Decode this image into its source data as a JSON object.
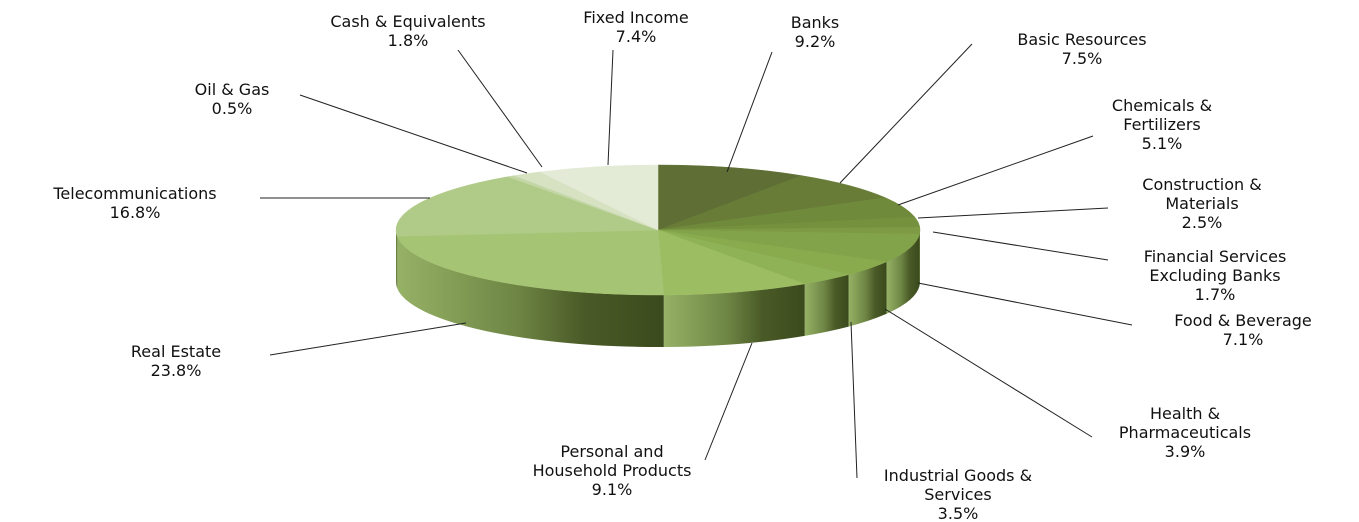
{
  "chart_data": {
    "type": "pie",
    "style": "3d",
    "slices": [
      {
        "name": "Banks",
        "lines": [
          "Banks"
        ],
        "pct_label": "9.2%",
        "value": 9.2,
        "color": "#5e6e34"
      },
      {
        "name": "Basic Resources",
        "lines": [
          "Basic Resources"
        ],
        "pct_label": "7.5%",
        "value": 7.5,
        "color": "#687c38"
      },
      {
        "name": "Chemicals & Fertilizers",
        "lines": [
          "Chemicals &",
          "Fertilizers"
        ],
        "pct_label": "5.1%",
        "value": 5.1,
        "color": "#6f8a3a"
      },
      {
        "name": "Construction & Materials",
        "lines": [
          "Construction &",
          "Materials"
        ],
        "pct_label": "2.5%",
        "value": 2.5,
        "color": "#76913e"
      },
      {
        "name": "Financial Services Excluding Banks",
        "lines": [
          "Financial Services",
          "Excluding Banks"
        ],
        "pct_label": "1.7%",
        "value": 1.7,
        "color": "#7e9a44"
      },
      {
        "name": "Food & Beverage",
        "lines": [
          "Food & Beverage"
        ],
        "pct_label": "7.1%",
        "value": 7.1,
        "color": "#82a34a"
      },
      {
        "name": "Health & Pharmaceuticals",
        "lines": [
          "Health &",
          "Pharmaceuticals"
        ],
        "pct_label": "3.9%",
        "value": 3.9,
        "color": "#89ab4e"
      },
      {
        "name": "Industrial Goods & Services",
        "lines": [
          "Industrial Goods &",
          "Services"
        ],
        "pct_label": "3.5%",
        "value": 3.5,
        "color": "#8fb256"
      },
      {
        "name": "Personal and Household Products",
        "lines": [
          "Personal and",
          "Household Products"
        ],
        "pct_label": "9.1%",
        "value": 9.1,
        "color": "#9dbd63"
      },
      {
        "name": "Real Estate",
        "lines": [
          "Real Estate"
        ],
        "pct_label": "23.8%",
        "value": 23.8,
        "color": "#a5c474"
      },
      {
        "name": "Telecommunications",
        "lines": [
          "Telecommunications"
        ],
        "pct_label": "16.8%",
        "value": 16.8,
        "color": "#b0cb88"
      },
      {
        "name": "Oil & Gas",
        "lines": [
          "Oil & Gas"
        ],
        "pct_label": "0.5%",
        "value": 0.5,
        "color": "#c3d6a6"
      },
      {
        "name": "Cash & Equivalents",
        "lines": [
          "Cash &  Equivalents"
        ],
        "pct_label": "1.8%",
        "value": 1.8,
        "color": "#d6e2c2"
      },
      {
        "name": "Fixed Income",
        "lines": [
          "Fixed Income"
        ],
        "pct_label": "7.4%",
        "value": 7.4,
        "color": "#e3ebd6"
      }
    ]
  }
}
